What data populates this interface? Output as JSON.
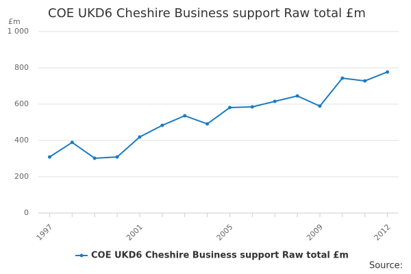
{
  "chart_data": {
    "type": "line",
    "title": "COE UKD6 Cheshire Business support Raw total £m",
    "y_unit": "£m",
    "source": "Source:",
    "x": [
      1997,
      1998,
      1999,
      2000,
      2001,
      2002,
      2003,
      2004,
      2005,
      2006,
      2007,
      2008,
      2009,
      2010,
      2011,
      2012
    ],
    "xlim": [
      1996.5,
      2012.5
    ],
    "xticks": [
      1997,
      2001,
      2005,
      2009,
      2012
    ],
    "ylim": [
      0,
      1000
    ],
    "yticks": [
      0,
      200,
      400,
      600,
      800,
      {
        "value": 1000,
        "label": "1 000"
      }
    ],
    "grid": true,
    "series": [
      {
        "name": "COE UKD6 Cheshire Business support Raw total £m",
        "color": "#1a7bbf",
        "values": [
          309,
          389,
          302,
          309,
          419,
          483,
          536,
          491,
          581,
          585,
          615,
          645,
          589,
          743,
          728,
          777
        ]
      }
    ]
  }
}
